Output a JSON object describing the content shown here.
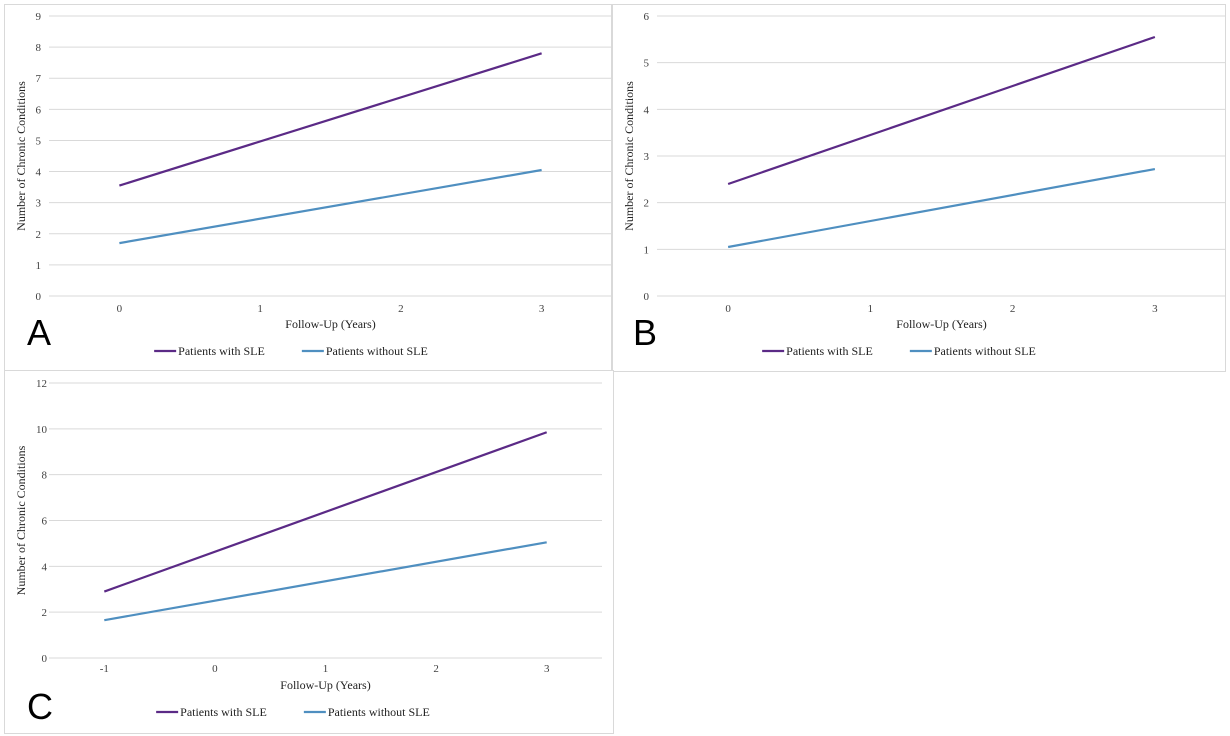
{
  "colors": {
    "sle": "#5b2a86",
    "non_sle": "#4f8fc0",
    "grid": "#d9d9d9"
  },
  "chart_data": [
    {
      "panel": "A",
      "type": "line",
      "xlabel": "Follow-Up (Years)",
      "ylabel": "Number of Chronic Conditions",
      "xticks": [
        0,
        1,
        2,
        3
      ],
      "yticks": [
        0,
        1,
        2,
        3,
        4,
        5,
        6,
        7,
        8,
        9
      ],
      "xlim": [
        -0.5,
        3.5
      ],
      "ylim": [
        0,
        9
      ],
      "grid": true,
      "legend_position": "bottom",
      "series": [
        {
          "name": "Patients with SLE",
          "color_key": "sle",
          "x": [
            0,
            3
          ],
          "y": [
            3.55,
            7.8
          ]
        },
        {
          "name": "Patients without SLE",
          "color_key": "non_sle",
          "x": [
            0,
            3
          ],
          "y": [
            1.7,
            4.05
          ]
        }
      ]
    },
    {
      "panel": "B",
      "type": "line",
      "xlabel": "Follow-Up (Years)",
      "ylabel": "Number of Chronic Conditions",
      "xticks": [
        0,
        1,
        2,
        3
      ],
      "yticks": [
        0,
        1,
        2,
        3,
        4,
        5,
        6
      ],
      "xlim": [
        -0.5,
        3.5
      ],
      "ylim": [
        0,
        6
      ],
      "grid": true,
      "legend_position": "bottom",
      "series": [
        {
          "name": "Patients with SLE",
          "color_key": "sle",
          "x": [
            0,
            3
          ],
          "y": [
            2.4,
            5.55
          ]
        },
        {
          "name": "Patients without SLE",
          "color_key": "non_sle",
          "x": [
            0,
            3
          ],
          "y": [
            1.05,
            2.72
          ]
        }
      ]
    },
    {
      "panel": "C",
      "type": "line",
      "xlabel": "Follow-Up (Years)",
      "ylabel": "Number of Chronic Conditions",
      "xticks": [
        -1,
        0,
        1,
        2,
        3
      ],
      "yticks": [
        0,
        2,
        4,
        6,
        8,
        10,
        12
      ],
      "xlim": [
        -1.5,
        3.5
      ],
      "ylim": [
        0,
        12
      ],
      "grid": true,
      "legend_position": "bottom",
      "series": [
        {
          "name": "Patients with SLE",
          "color_key": "sle",
          "x": [
            -1,
            3
          ],
          "y": [
            2.9,
            9.85
          ]
        },
        {
          "name": "Patients without SLE",
          "color_key": "non_sle",
          "x": [
            -1,
            3
          ],
          "y": [
            1.65,
            5.05
          ]
        }
      ]
    }
  ]
}
